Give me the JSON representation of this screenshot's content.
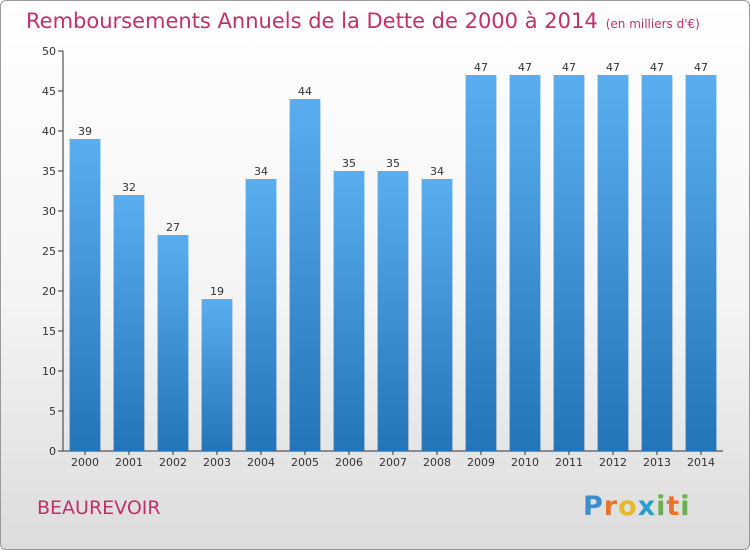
{
  "title": "Remboursements Annuels de la Dette de 2000 à 2014",
  "title_unit": "(en milliers d'€)",
  "commune": "BEAUREVOIR",
  "logo": {
    "letters": [
      "P",
      "r",
      "o",
      "x",
      "i",
      "t",
      "i"
    ],
    "colors": [
      "#3a8fd0",
      "#e8732a",
      "#e8b92a",
      "#2a9ed0",
      "#6ab04c",
      "#e8732a",
      "#6ab04c"
    ]
  },
  "colors": {
    "accent": "#c0306a",
    "bar_top": "#5aaef0",
    "bar_bottom": "#2474b8",
    "axis": "#333333"
  },
  "chart_data": {
    "type": "bar",
    "categories": [
      "2000",
      "2001",
      "2002",
      "2003",
      "2004",
      "2005",
      "2006",
      "2007",
      "2008",
      "2009",
      "2010",
      "2011",
      "2012",
      "2013",
      "2014"
    ],
    "values": [
      39,
      32,
      27,
      19,
      34,
      44,
      35,
      35,
      34,
      47,
      47,
      47,
      47,
      47,
      47
    ],
    "ylim": [
      0,
      50
    ],
    "yticks": [
      0,
      5,
      10,
      15,
      20,
      25,
      30,
      35,
      40,
      45,
      50
    ],
    "grid": false,
    "data_labels": true
  }
}
